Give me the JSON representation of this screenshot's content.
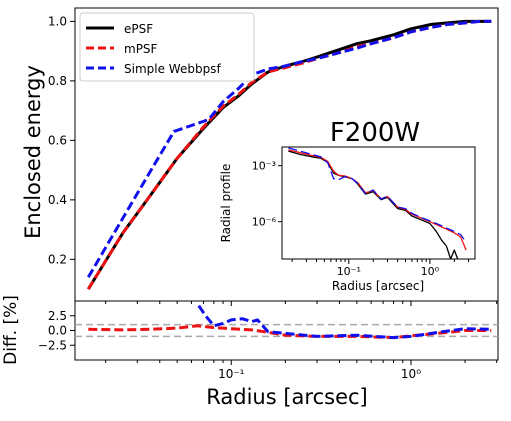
{
  "chart_data": [
    {
      "type": "line",
      "panel": "main",
      "xscale": "log",
      "xlim": [
        0.0135,
        3.05
      ],
      "ylim": [
        0.06,
        1.045
      ],
      "ylabel": "Enclosed energy",
      "xlabel": "",
      "grid": false,
      "legend_position": "top-left",
      "annotation": "F200W",
      "yticks": [
        0.2,
        0.4,
        0.6,
        0.8,
        1.0
      ],
      "ytick_labels": [
        "0.2",
        "0.4",
        "0.6",
        "0.8",
        "1.0"
      ],
      "series": [
        {
          "name": "ePSF",
          "color": "#000000",
          "dash": "solid",
          "x": [
            0.016,
            0.025,
            0.035,
            0.05,
            0.07,
            0.09,
            0.11,
            0.13,
            0.16,
            0.2,
            0.25,
            0.3,
            0.4,
            0.5,
            0.6,
            0.8,
            1.0,
            1.3,
            1.6,
            2.0,
            2.4,
            2.8
          ],
          "y": [
            0.1,
            0.29,
            0.41,
            0.54,
            0.64,
            0.71,
            0.75,
            0.79,
            0.83,
            0.85,
            0.865,
            0.88,
            0.905,
            0.925,
            0.935,
            0.955,
            0.975,
            0.99,
            0.995,
            1.0,
            1.0,
            1.0
          ]
        },
        {
          "name": "mPSF",
          "color": "#ee1111",
          "dash": "dashed",
          "x": [
            0.016,
            0.025,
            0.035,
            0.05,
            0.07,
            0.09,
            0.11,
            0.13,
            0.16,
            0.2,
            0.25,
            0.3,
            0.4,
            0.5,
            0.6,
            0.8,
            1.0,
            1.3,
            1.6,
            2.0,
            2.4,
            2.8
          ],
          "y": [
            0.1,
            0.29,
            0.41,
            0.54,
            0.645,
            0.715,
            0.755,
            0.795,
            0.83,
            0.845,
            0.86,
            0.875,
            0.895,
            0.915,
            0.925,
            0.945,
            0.965,
            0.98,
            0.99,
            0.995,
            1.0,
            1.0
          ]
        },
        {
          "name": "Simple Webbpsf",
          "color": "#1010ee",
          "dash": "dashed",
          "x": [
            0.016,
            0.025,
            0.035,
            0.048,
            0.06,
            0.075,
            0.09,
            0.11,
            0.13,
            0.16,
            0.2,
            0.25,
            0.3,
            0.4,
            0.5,
            0.6,
            0.8,
            1.0,
            1.3,
            1.6,
            2.0,
            2.4,
            2.8
          ],
          "y": [
            0.14,
            0.34,
            0.49,
            0.63,
            0.65,
            0.67,
            0.73,
            0.775,
            0.82,
            0.84,
            0.85,
            0.865,
            0.875,
            0.895,
            0.91,
            0.925,
            0.945,
            0.965,
            0.98,
            0.99,
            0.995,
            1.0,
            1.0
          ]
        }
      ]
    },
    {
      "type": "line",
      "panel": "inset",
      "xscale": "log",
      "yscale": "log",
      "xlim": [
        0.015,
        3.6
      ],
      "ylim": [
        1e-08,
        0.01
      ],
      "xlabel": "Radius [arcsec]",
      "ylabel": "Radial profile",
      "xticks": [
        0.1,
        1.0
      ],
      "xtick_labels": [
        "10⁻¹",
        "10⁰"
      ],
      "yticks": [
        0.001,
        1e-06
      ],
      "ytick_labels": [
        "10⁻³",
        "10⁻⁶"
      ],
      "series": [
        {
          "name": "ePSF",
          "color": "#000000",
          "dash": "solid",
          "x": [
            0.018,
            0.025,
            0.035,
            0.045,
            0.055,
            0.065,
            0.075,
            0.09,
            0.11,
            0.13,
            0.16,
            0.2,
            0.25,
            0.3,
            0.4,
            0.5,
            0.6,
            0.8,
            1.0,
            1.2,
            1.4,
            1.6,
            1.8,
            2.0,
            2.2
          ],
          "y": [
            0.006,
            0.004,
            0.003,
            0.0025,
            0.0015,
            0.0004,
            0.0003,
            0.00025,
            0.0002,
            0.0001,
            3e-05,
            4e-05,
            1.5e-05,
            2e-05,
            5e-06,
            4e-06,
            2e-06,
            1.2e-06,
            8e-07,
            3e-07,
            1e-07,
            5e-08,
            1e-08,
            3e-08,
            1e-08
          ]
        },
        {
          "name": "mPSF",
          "color": "#ee1111",
          "dash": "solid",
          "x": [
            0.018,
            0.025,
            0.035,
            0.045,
            0.055,
            0.065,
            0.075,
            0.09,
            0.11,
            0.13,
            0.16,
            0.2,
            0.25,
            0.3,
            0.4,
            0.5,
            0.6,
            0.8,
            1.0,
            1.3,
            1.6,
            2.0,
            2.4,
            2.8
          ],
          "y": [
            0.007,
            0.005,
            0.0035,
            0.0028,
            0.0017,
            0.0005,
            0.0003,
            0.00028,
            0.0002,
            0.00012,
            3.5e-05,
            4.5e-05,
            1.7e-05,
            2.2e-05,
            6e-06,
            4.5e-06,
            2.5e-06,
            1.5e-06,
            1e-06,
            6e-07,
            4e-07,
            2.5e-07,
            1.5e-07,
            3e-08
          ]
        },
        {
          "name": "Simple Webbpsf",
          "color": "#1010ee",
          "dash": "dashed",
          "x": [
            0.018,
            0.025,
            0.035,
            0.045,
            0.055,
            0.065,
            0.075,
            0.09,
            0.11,
            0.13,
            0.16,
            0.2,
            0.25,
            0.3,
            0.4,
            0.5,
            0.6,
            0.8,
            1.0,
            1.3,
            1.6,
            2.0,
            2.4,
            2.8
          ],
          "y": [
            0.009,
            0.006,
            0.004,
            0.003,
            0.0014,
            0.0002,
            0.00018,
            0.00026,
            0.0002,
            0.00011,
            3.2e-05,
            5e-05,
            1.6e-05,
            2.3e-05,
            6e-06,
            5e-06,
            2.8e-06,
            1.6e-06,
            1.1e-06,
            7e-07,
            4.5e-07,
            3e-07,
            2e-07,
            8e-08
          ]
        }
      ]
    },
    {
      "type": "line",
      "panel": "residual",
      "xscale": "log",
      "xlim": [
        0.0135,
        3.05
      ],
      "ylim": [
        -5.0,
        5.0
      ],
      "xlabel": "Radius [arcsec]",
      "ylabel": "Diff. [%]",
      "xticks": [
        0.1,
        1.0
      ],
      "xtick_labels": [
        "10⁻¹",
        "10⁰"
      ],
      "yticks": [
        2.5,
        0.0,
        -2.5
      ],
      "ytick_labels": [
        "2.5",
        "0.0",
        "−2.5"
      ],
      "reference_lines": [
        1.0,
        -1.0
      ],
      "series": [
        {
          "name": "mPSF",
          "color": "#ee1111",
          "dash": "dashed",
          "x": [
            0.016,
            0.025,
            0.035,
            0.05,
            0.065,
            0.08,
            0.1,
            0.13,
            0.16,
            0.2,
            0.3,
            0.5,
            0.8,
            1.0,
            1.5,
            2.0,
            2.8
          ],
          "y": [
            0.2,
            0.1,
            0.2,
            0.4,
            0.8,
            0.5,
            0.3,
            0.1,
            -0.3,
            -0.8,
            -1.0,
            -1.0,
            -1.2,
            -0.9,
            -0.4,
            0.0,
            0.0
          ]
        },
        {
          "name": "Simple Webbpsf",
          "color": "#1010ee",
          "dash": "dashed",
          "x": [
            0.066,
            0.072,
            0.08,
            0.09,
            0.1,
            0.115,
            0.13,
            0.14,
            0.16,
            0.2,
            0.3,
            0.5,
            0.8,
            1.0,
            1.5,
            2.0,
            2.8
          ],
          "y": [
            4.2,
            2.5,
            0.8,
            1.2,
            1.8,
            2.0,
            1.5,
            1.8,
            -0.2,
            -0.5,
            -1.0,
            -0.8,
            -1.2,
            -1.0,
            -0.2,
            0.3,
            0.2
          ]
        }
      ]
    }
  ]
}
